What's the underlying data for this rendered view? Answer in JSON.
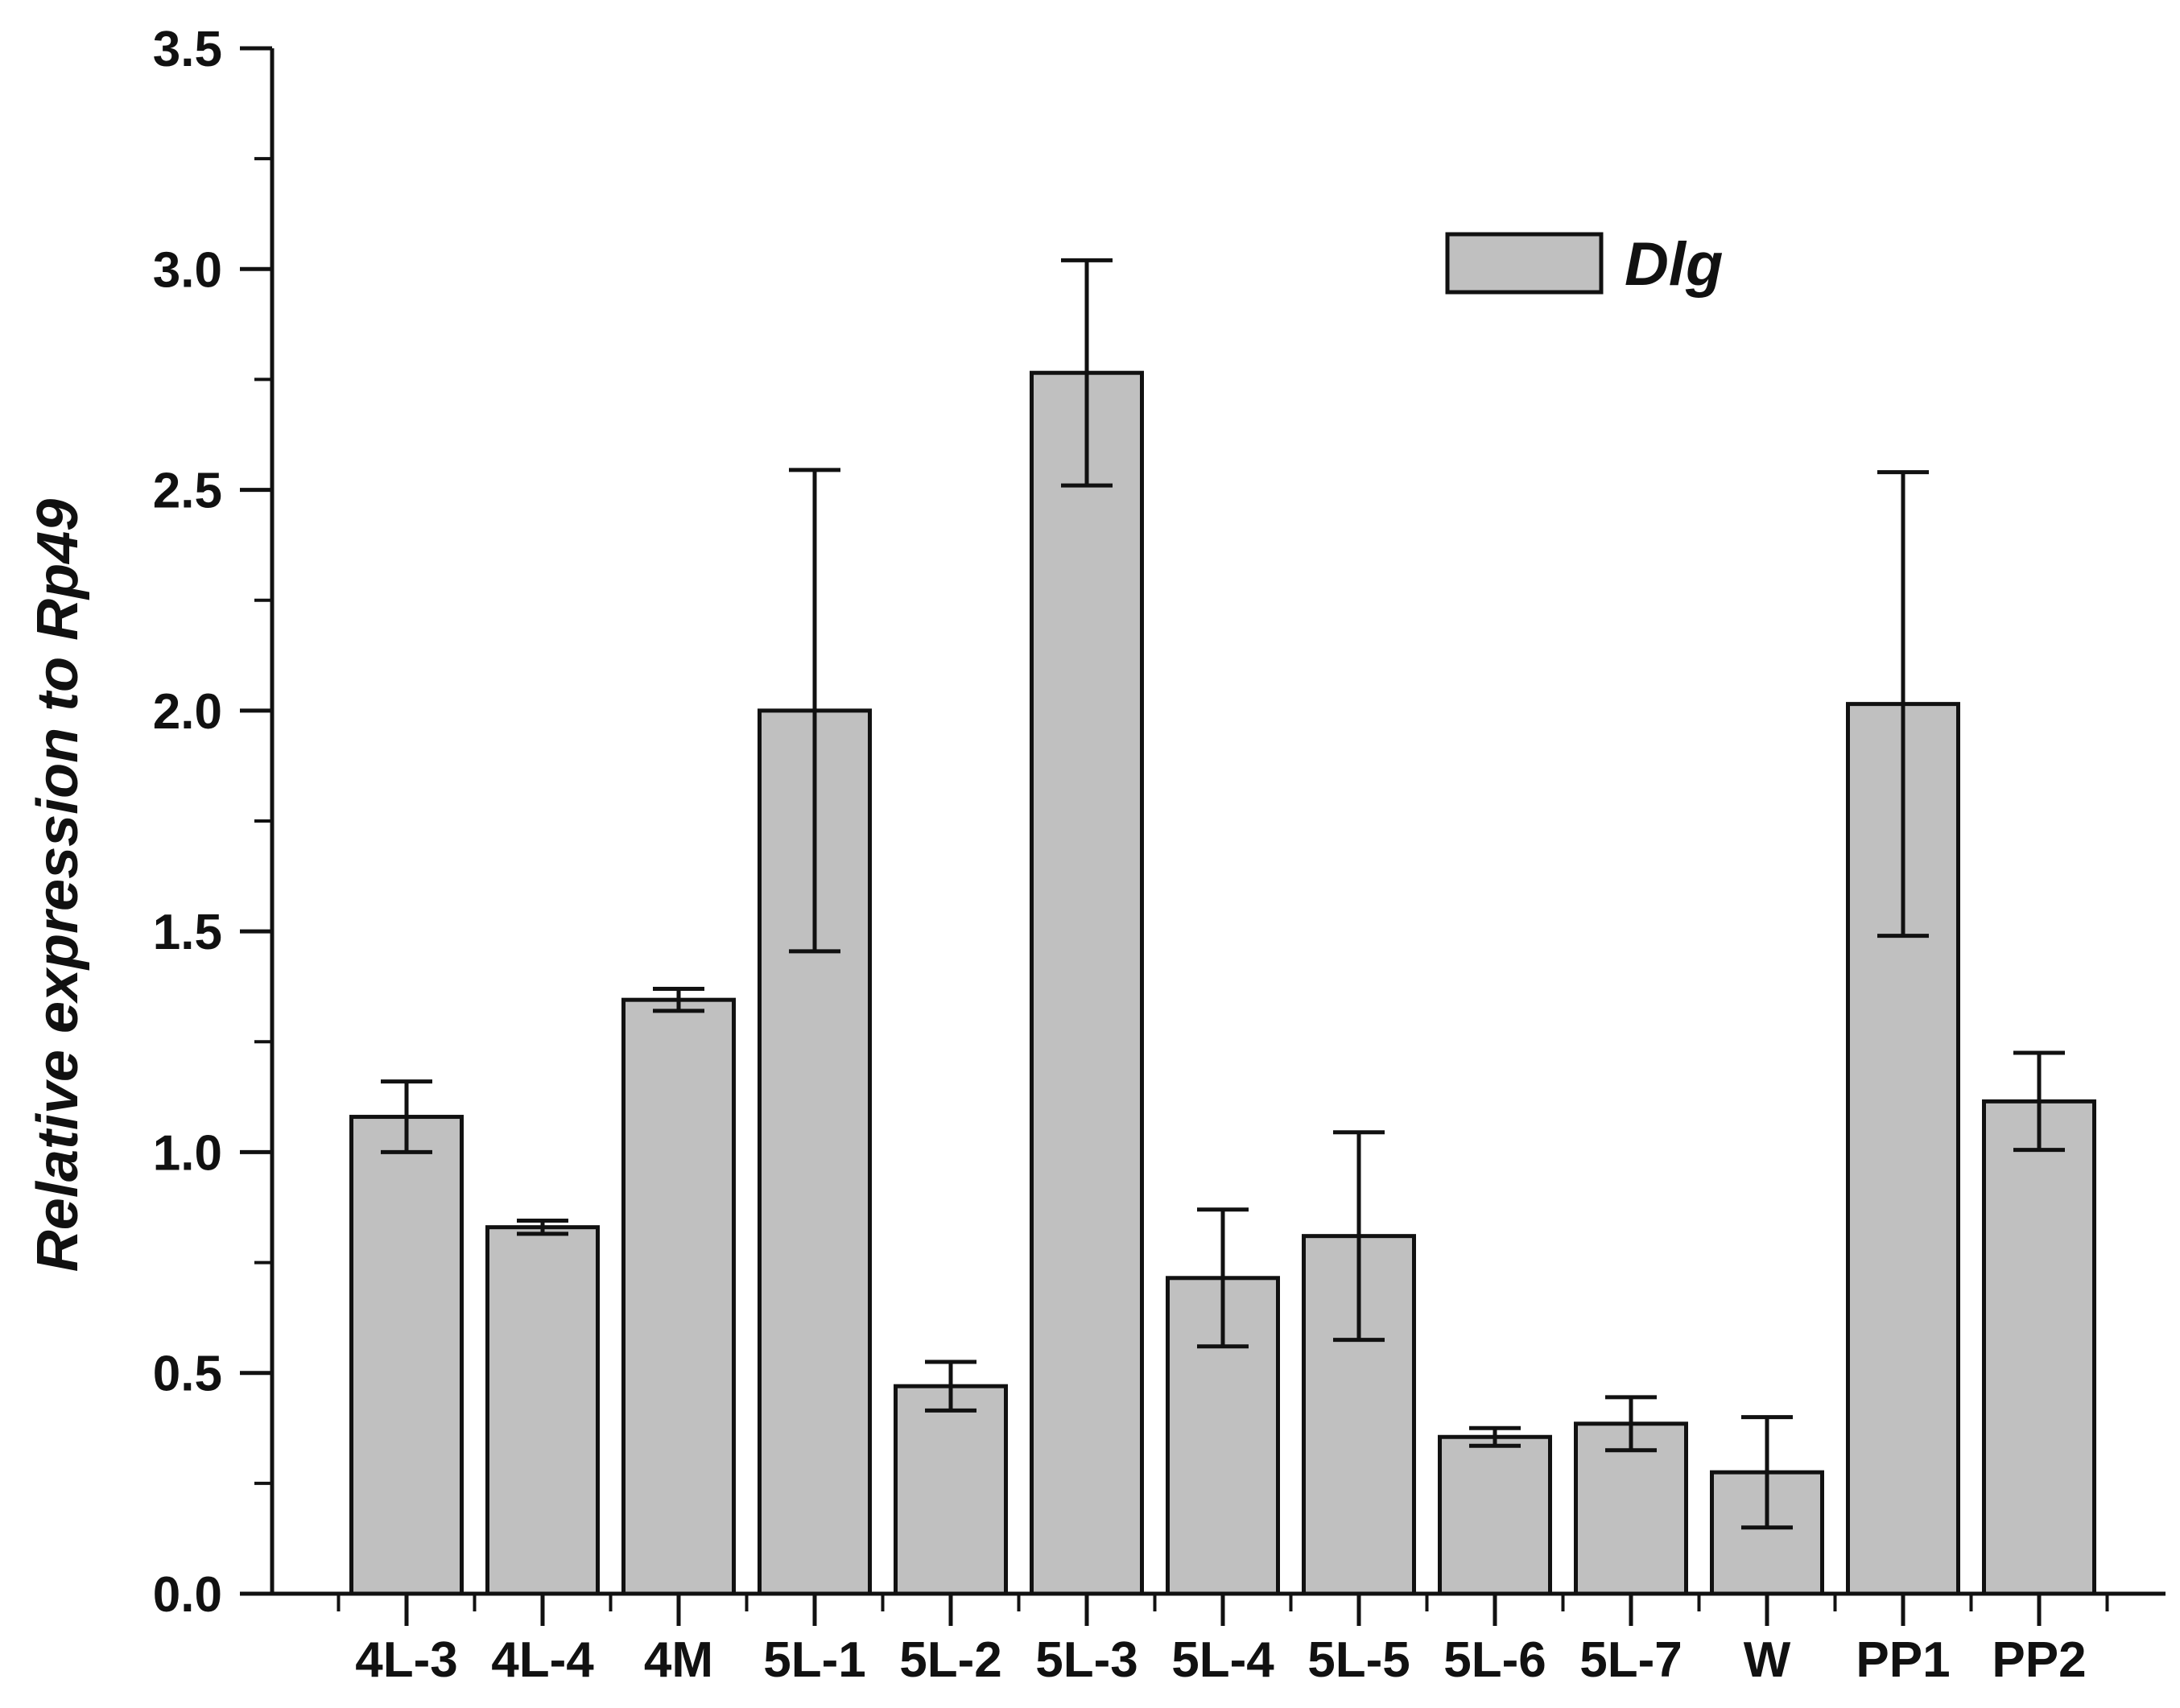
{
  "chart_data": {
    "type": "bar",
    "title": "",
    "xlabel": "",
    "ylabel_prefix": "Relative expression to ",
    "ylabel_gene": "Rp49",
    "ylim": [
      0,
      3.5
    ],
    "yticks": [
      "0.0",
      "0.5",
      "1.0",
      "1.5",
      "2.0",
      "2.5",
      "3.0",
      "3.5"
    ],
    "categories": [
      "4L-3",
      "4L-4",
      "4M",
      "5L-1",
      "5L-2",
      "5L-3",
      "5L-4",
      "5L-5",
      "5L-6",
      "5L-7",
      "W",
      "PP1",
      "PP2"
    ],
    "series": [
      {
        "name": "Dlg",
        "values": [
          1.08,
          0.83,
          1.345,
          2.0,
          0.47,
          2.765,
          0.715,
          0.81,
          0.355,
          0.385,
          0.275,
          2.015,
          1.115
        ],
        "errors": [
          0.08,
          0.015,
          0.025,
          0.545,
          0.055,
          0.255,
          0.155,
          0.235,
          0.02,
          0.06,
          0.125,
          0.525,
          0.11
        ]
      }
    ],
    "legend_position": "top-right",
    "colors": {
      "bar_fill": "#c0c0c0",
      "bar_stroke": "#111111",
      "axis": "#111111"
    }
  }
}
